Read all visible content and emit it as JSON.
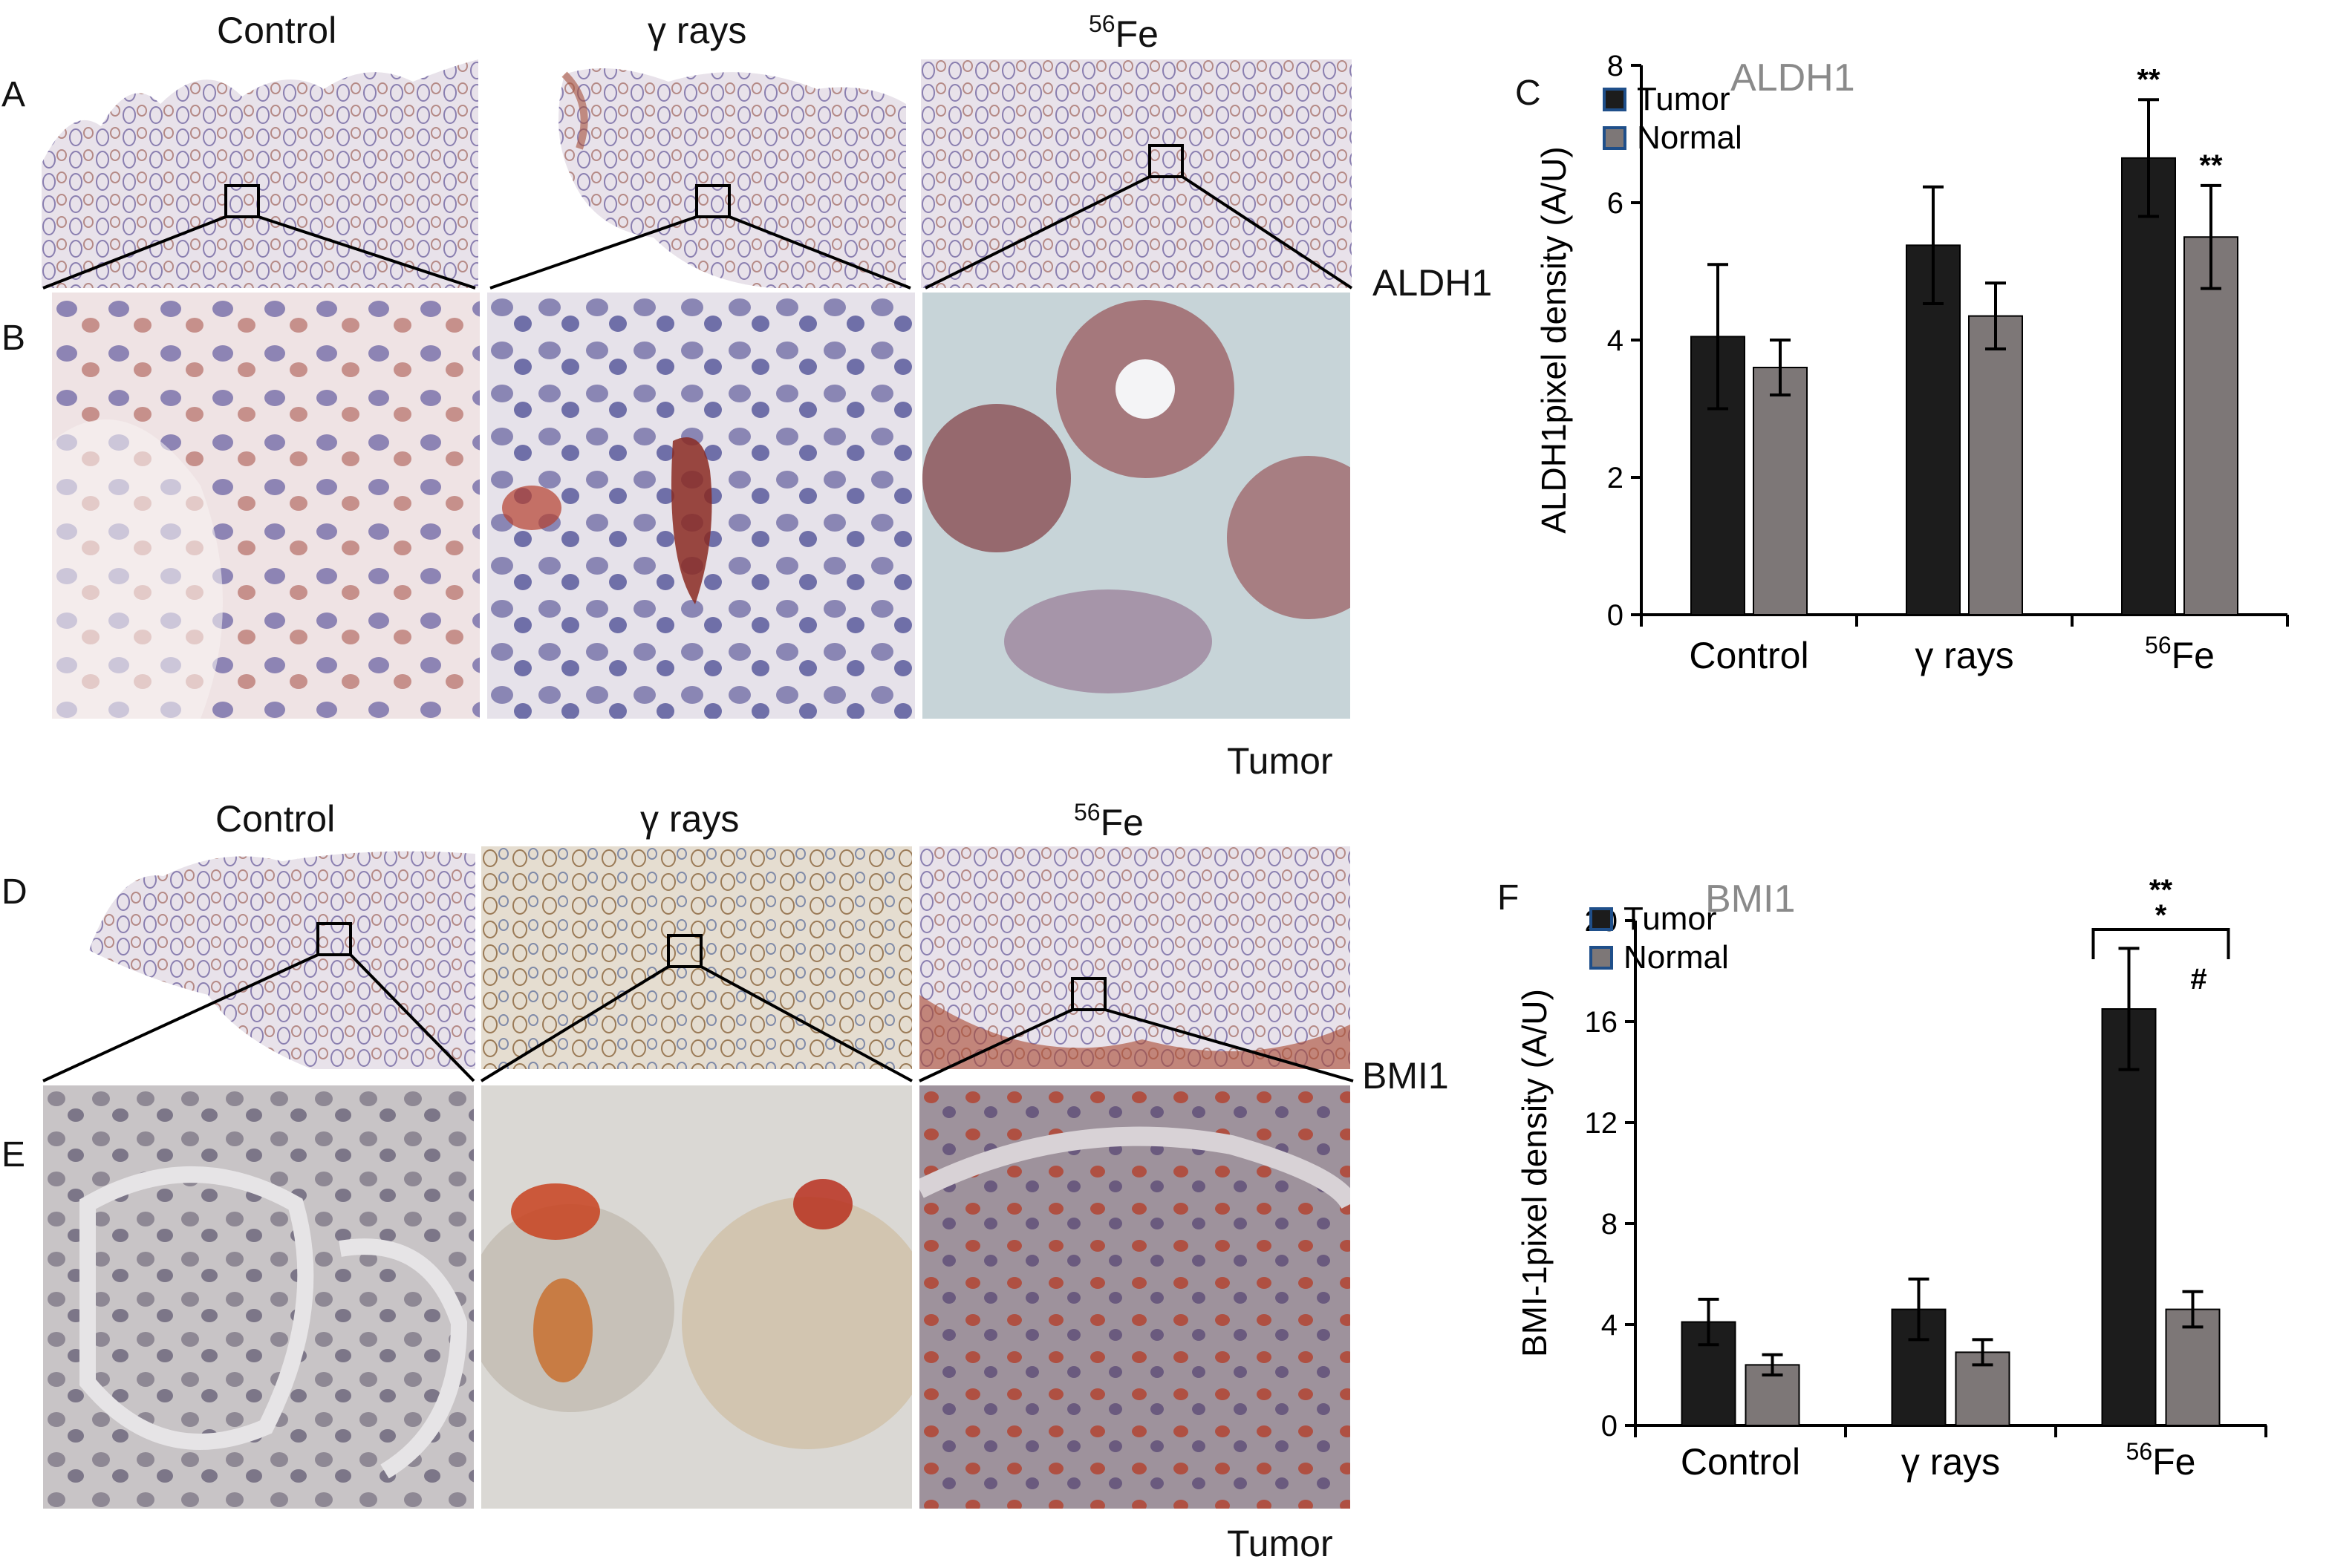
{
  "figure": {
    "top": {
      "col_headers": [
        "Control",
        "γ rays",
        "Fe"
      ],
      "fe_superscript": "56",
      "panel_labels": {
        "a": "A",
        "b": "B",
        "c": "C"
      },
      "row_marker": "ALDH1",
      "tissue_label": "Tumor"
    },
    "bottom": {
      "col_headers": [
        "Control",
        "γ rays",
        "Fe"
      ],
      "fe_superscript": "56",
      "panel_labels": {
        "d": "D",
        "e": "E",
        "f": "F"
      },
      "row_marker": "BMI1",
      "tissue_label": "Tumor"
    }
  },
  "chart_data": [
    {
      "type": "bar",
      "title": "ALDH1",
      "ylabel": "ALDH1pixel density (A/U)",
      "xlabel": "",
      "categories": [
        "Control",
        "γ rays",
        "Fe"
      ],
      "category_superscripts": [
        "",
        "",
        "56"
      ],
      "ylim": [
        0,
        8
      ],
      "yticks": [
        0,
        2,
        4,
        6,
        8
      ],
      "legend_position": "top-left",
      "series": [
        {
          "name": "Tumor",
          "color": "#1c1c1c",
          "values": [
            4.05,
            5.38,
            6.65
          ],
          "errors": [
            1.05,
            0.85,
            0.85
          ]
        },
        {
          "name": "Normal",
          "color": "#7d7777",
          "values": [
            3.6,
            4.35,
            5.5
          ],
          "errors": [
            0.4,
            0.48,
            0.75
          ]
        }
      ],
      "annotations": [
        {
          "text": "**",
          "category": 2,
          "series": 0
        },
        {
          "text": "**",
          "category": 2,
          "series": 1
        }
      ]
    },
    {
      "type": "bar",
      "title": "BMI1",
      "ylabel": "BMI-1pixel density (A/U)",
      "xlabel": "",
      "categories": [
        "Control",
        "γ rays",
        "Fe"
      ],
      "category_superscripts": [
        "",
        "",
        "56"
      ],
      "ylim": [
        0,
        20
      ],
      "yticks": [
        0,
        4,
        8,
        12,
        16,
        20
      ],
      "legend_position": "top-left",
      "series": [
        {
          "name": "Tumor",
          "color": "#1c1c1c",
          "values": [
            4.1,
            4.6,
            16.5
          ],
          "errors": [
            0.9,
            1.2,
            2.4
          ]
        },
        {
          "name": "Normal",
          "color": "#7d7777",
          "values": [
            2.4,
            2.9,
            4.6
          ],
          "errors": [
            0.4,
            0.5,
            0.7
          ]
        }
      ],
      "annotations": [
        {
          "text": "**",
          "category": 2,
          "series": "bracket-top"
        },
        {
          "text": "*",
          "category": 2,
          "series": "bracket-bottom"
        },
        {
          "text": "#",
          "category": 2,
          "series": "bracket-inside"
        }
      ]
    }
  ]
}
